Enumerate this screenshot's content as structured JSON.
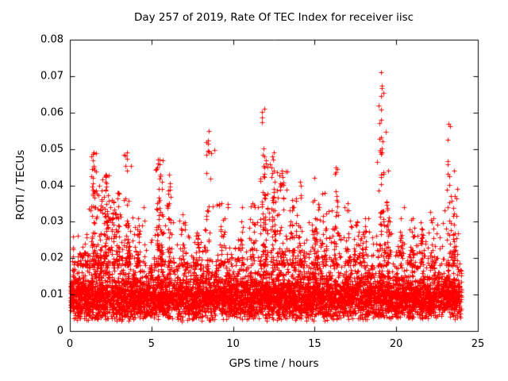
{
  "chart": {
    "title": "Day 257 of 2019, Rate Of TEC Index for receiver iisc",
    "xlabel": "GPS time / hours",
    "ylabel": "ROTI / TECUs"
  },
  "chart_data": {
    "type": "scatter",
    "title": "Day 257 of 2019, Rate Of TEC Index for receiver iisc",
    "xlabel": "GPS time / hours",
    "ylabel": "ROTI / TECUs",
    "xlim": [
      0,
      25
    ],
    "ylim": [
      0,
      0.08
    ],
    "xticks": [
      0,
      5,
      10,
      15,
      20,
      25
    ],
    "yticks": [
      0,
      0.01,
      0.02,
      0.03,
      0.04,
      0.05,
      0.06,
      0.07,
      0.08
    ],
    "grid": false,
    "legend": "none",
    "marker": "plus",
    "color": "#ff0000",
    "axis_color": "#000000",
    "baseline_band": {
      "description": "dense noise band of ROTI values across all hours",
      "count": 6500,
      "x_range": [
        0.05,
        24.0
      ],
      "y_floor": 0.0025,
      "y_sigma": 0.004,
      "y_spread": 0.007,
      "tail_chance": 0.25,
      "tail_scale": 0.005,
      "y_cap": 0.034
    },
    "spike_clusters": [
      {
        "x": 0.9,
        "ymax": 0.024,
        "count": 20
      },
      {
        "x": 1.45,
        "ymax": 0.049,
        "count": 55
      },
      {
        "x": 1.8,
        "ymax": 0.04,
        "count": 35
      },
      {
        "x": 2.2,
        "ymax": 0.043,
        "count": 70
      },
      {
        "x": 2.6,
        "ymax": 0.036,
        "count": 30
      },
      {
        "x": 2.95,
        "ymax": 0.038,
        "count": 35
      },
      {
        "x": 3.5,
        "ymax": 0.049,
        "count": 45
      },
      {
        "x": 4.2,
        "ymax": 0.031,
        "count": 25
      },
      {
        "x": 5.5,
        "ymax": 0.047,
        "count": 65
      },
      {
        "x": 6.1,
        "ymax": 0.043,
        "count": 30
      },
      {
        "x": 6.9,
        "ymax": 0.032,
        "count": 25
      },
      {
        "x": 7.8,
        "ymax": 0.027,
        "count": 20
      },
      {
        "x": 8.5,
        "ymax": 0.055,
        "count": 25
      },
      {
        "x": 9.3,
        "ymax": 0.035,
        "count": 25
      },
      {
        "x": 10.5,
        "ymax": 0.03,
        "count": 15
      },
      {
        "x": 11.2,
        "ymax": 0.035,
        "count": 20
      },
      {
        "x": 11.9,
        "ymax": 0.061,
        "count": 70
      },
      {
        "x": 12.5,
        "ymax": 0.049,
        "count": 55
      },
      {
        "x": 13.0,
        "ymax": 0.044,
        "count": 40
      },
      {
        "x": 13.6,
        "ymax": 0.036,
        "count": 25
      },
      {
        "x": 14.1,
        "ymax": 0.041,
        "count": 30
      },
      {
        "x": 15.0,
        "ymax": 0.042,
        "count": 40
      },
      {
        "x": 15.6,
        "ymax": 0.038,
        "count": 30
      },
      {
        "x": 16.3,
        "ymax": 0.045,
        "count": 30
      },
      {
        "x": 17.0,
        "ymax": 0.035,
        "count": 25
      },
      {
        "x": 17.6,
        "ymax": 0.03,
        "count": 20
      },
      {
        "x": 18.1,
        "ymax": 0.031,
        "count": 20
      },
      {
        "x": 19.05,
        "ymax": 0.071,
        "count": 45
      },
      {
        "x": 19.5,
        "ymax": 0.044,
        "count": 30
      },
      {
        "x": 20.3,
        "ymax": 0.031,
        "count": 20
      },
      {
        "x": 21.0,
        "ymax": 0.031,
        "count": 25
      },
      {
        "x": 21.6,
        "ymax": 0.028,
        "count": 20
      },
      {
        "x": 22.3,
        "ymax": 0.031,
        "count": 20
      },
      {
        "x": 23.2,
        "ymax": 0.057,
        "count": 25
      },
      {
        "x": 23.55,
        "ymax": 0.044,
        "count": 35
      }
    ]
  }
}
